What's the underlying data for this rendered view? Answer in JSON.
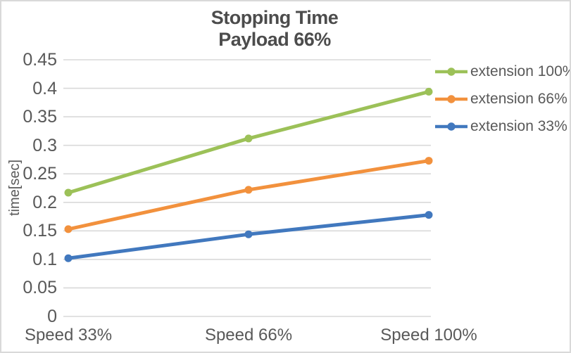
{
  "window": {
    "background_color": "#ffffff",
    "border_color": "#d9d9d9"
  },
  "chart_data": {
    "type": "line",
    "title": "Stopping Time",
    "subtitle": "Payload 66%",
    "ylabel": "time[sec]",
    "xlabel": "",
    "categories": [
      "Speed 33%",
      "Speed 66%",
      "Speed 100%"
    ],
    "series": [
      {
        "name": "extension 100%",
        "color": "#9cc158",
        "values": [
          0.217,
          0.312,
          0.394
        ]
      },
      {
        "name": "extension 66%",
        "color": "#f2913d",
        "values": [
          0.153,
          0.222,
          0.273
        ]
      },
      {
        "name": "extension 33%",
        "color": "#4178be",
        "values": [
          0.102,
          0.144,
          0.178
        ]
      }
    ],
    "ylim": [
      0,
      0.45
    ],
    "ytick_values": [
      0,
      0.05,
      0.1,
      0.15,
      0.2,
      0.25,
      0.3,
      0.35,
      0.4,
      0.45
    ],
    "ytick_labels": [
      "0",
      "0.05",
      "0.1",
      "0.15",
      "0.2",
      "0.25",
      "0.3",
      "0.35",
      "0.4",
      "0.45"
    ],
    "grid": "horizontal",
    "legend_position": "right",
    "marker": "circle",
    "text_color": "#595959",
    "grid_color": "#d9d9d9"
  }
}
